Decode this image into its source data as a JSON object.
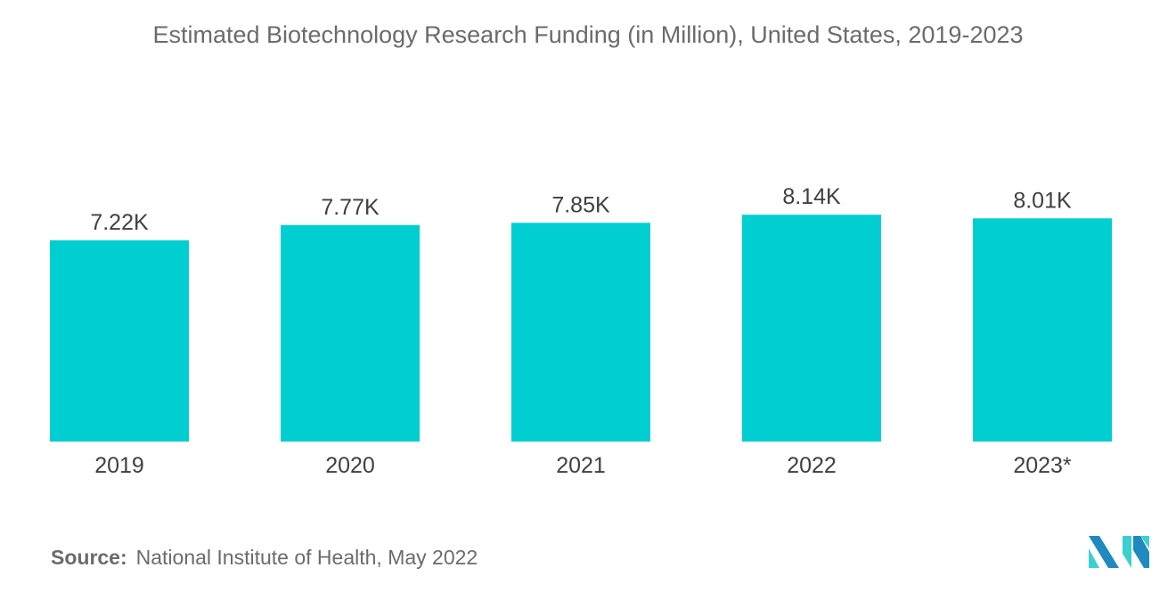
{
  "chart_data": {
    "type": "bar",
    "title": "Estimated Biotechnology Research Funding (in Million), United States, 2019-2023",
    "categories": [
      "2019",
      "2020",
      "2021",
      "2022",
      "2023*"
    ],
    "values": [
      7.22,
      7.77,
      7.85,
      8.14,
      8.01
    ],
    "data_labels": [
      "7.22K",
      "7.77K",
      "7.85K",
      "8.14K",
      "8.01K"
    ],
    "unit": "K",
    "ylim": [
      0,
      8.5
    ],
    "grid": false,
    "bar_color": "#00ced1"
  },
  "source": {
    "label": "Source:",
    "text": "National Institute of Health, May 2022"
  },
  "logo": {
    "colors": [
      "#1f8ac0",
      "#3ccfcf"
    ]
  }
}
